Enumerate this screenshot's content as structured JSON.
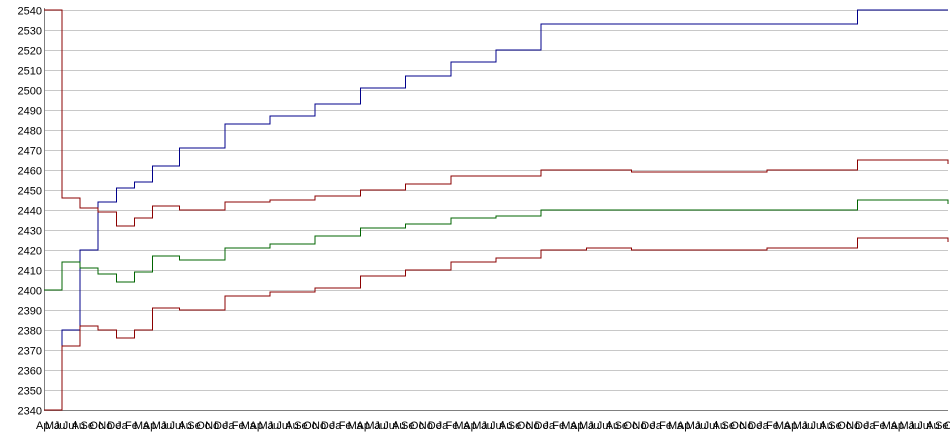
{
  "chart_data": {
    "type": "line",
    "title": "",
    "xlabel": "",
    "ylabel": "",
    "ylim": [
      2340,
      2540
    ],
    "y_ticks": [
      2340,
      2350,
      2360,
      2370,
      2380,
      2390,
      2400,
      2410,
      2420,
      2430,
      2440,
      2450,
      2460,
      2470,
      2480,
      2490,
      2500,
      2510,
      2520,
      2530,
      2540
    ],
    "x_tick_labels": [
      "Ap",
      "Ma",
      "Ju",
      "Jul",
      "Au",
      "Se",
      "Oc",
      "No",
      "De",
      "Ja",
      "Fe",
      "Ma",
      "Ap",
      "Ma",
      "Ju",
      "Jul",
      "Au",
      "Se",
      "Oc",
      "No",
      "De",
      "Ja",
      "Fe",
      "Ma",
      "Ap",
      "Ma",
      "Ju",
      "Jul",
      "Au",
      "Se",
      "Oc",
      "No",
      "De",
      "Ja",
      "Fe",
      "Ma",
      "Ap",
      "Ma",
      "Ju",
      "Jul",
      "Au",
      "Se",
      "Oc",
      "No",
      "De",
      "Ja",
      "Fe",
      "Ma",
      "Ap",
      "Ma",
      "Ju",
      "Jul",
      "Au",
      "Se",
      "Oc",
      "No",
      "De",
      "Ja",
      "Fe",
      "Ma",
      "Ap",
      "Ma",
      "Ju",
      "Jul",
      "Au",
      "Se",
      "Oc",
      "No",
      "De",
      "Ja",
      "Fe",
      "Ma",
      "Ap",
      "Ma",
      "Ju",
      "Jul",
      "Au",
      "Se",
      "Oc",
      "No",
      "De",
      "Ja",
      "Fe",
      "Ma",
      "Ap",
      "Ma",
      "Ju",
      "Jul",
      "Au",
      "Se",
      "Oc",
      "No",
      "De",
      "Ja",
      "Fe",
      "Ma",
      "Ap",
      "Ma",
      "Ju",
      "Jul",
      "Au",
      "Se",
      "Oc"
    ],
    "grid": true,
    "legend": "none",
    "x": [
      0,
      2,
      4,
      6,
      8,
      10,
      12,
      15,
      20,
      25,
      30,
      35,
      40,
      45,
      50,
      55,
      60,
      65,
      70,
      80,
      90,
      100
    ],
    "series": [
      {
        "color": "#00008b",
        "values": [
          2340,
          2380,
          2420,
          2444,
          2451,
          2454,
          2462,
          2471,
          2483,
          2487,
          2493,
          2501,
          2507,
          2514,
          2520,
          2533,
          2533,
          2533,
          2533,
          2533,
          2540,
          2540
        ]
      },
      {
        "color": "#8b0000",
        "values": [
          2540,
          2446,
          2441,
          2439,
          2432,
          2436,
          2442,
          2440,
          2444,
          2445,
          2447,
          2450,
          2453,
          2457,
          2457,
          2460,
          2460,
          2459,
          2459,
          2460,
          2465,
          2463
        ]
      },
      {
        "color": "#006400",
        "values": [
          2400,
          2414,
          2411,
          2408,
          2404,
          2409,
          2417,
          2415,
          2421,
          2423,
          2427,
          2431,
          2433,
          2436,
          2437,
          2440,
          2440,
          2440,
          2440,
          2440,
          2445,
          2443
        ]
      },
      {
        "color": "#8b0000",
        "values": [
          2340,
          2372,
          2382,
          2380,
          2376,
          2380,
          2391,
          2390,
          2397,
          2399,
          2401,
          2407,
          2410,
          2414,
          2416,
          2420,
          2421,
          2420,
          2420,
          2421,
          2426,
          2424
        ]
      }
    ]
  }
}
